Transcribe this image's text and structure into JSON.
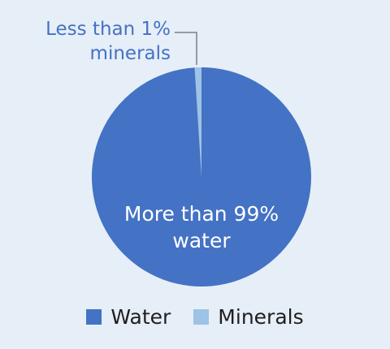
{
  "chart_data": {
    "type": "pie",
    "categories": [
      "Minerals",
      "Water"
    ],
    "values": [
      1,
      99
    ],
    "colors": [
      "#9dc3e6",
      "#4472c4"
    ],
    "labels": {
      "minerals_line1": "Less than 1%",
      "minerals_line2": "minerals",
      "water_line1": "More than 99%",
      "water_line2": "water"
    },
    "legend": [
      {
        "name": "Water",
        "color": "#4472c4"
      },
      {
        "name": "Minerals",
        "color": "#9dc3e6"
      }
    ],
    "legend_position": "bottom"
  }
}
